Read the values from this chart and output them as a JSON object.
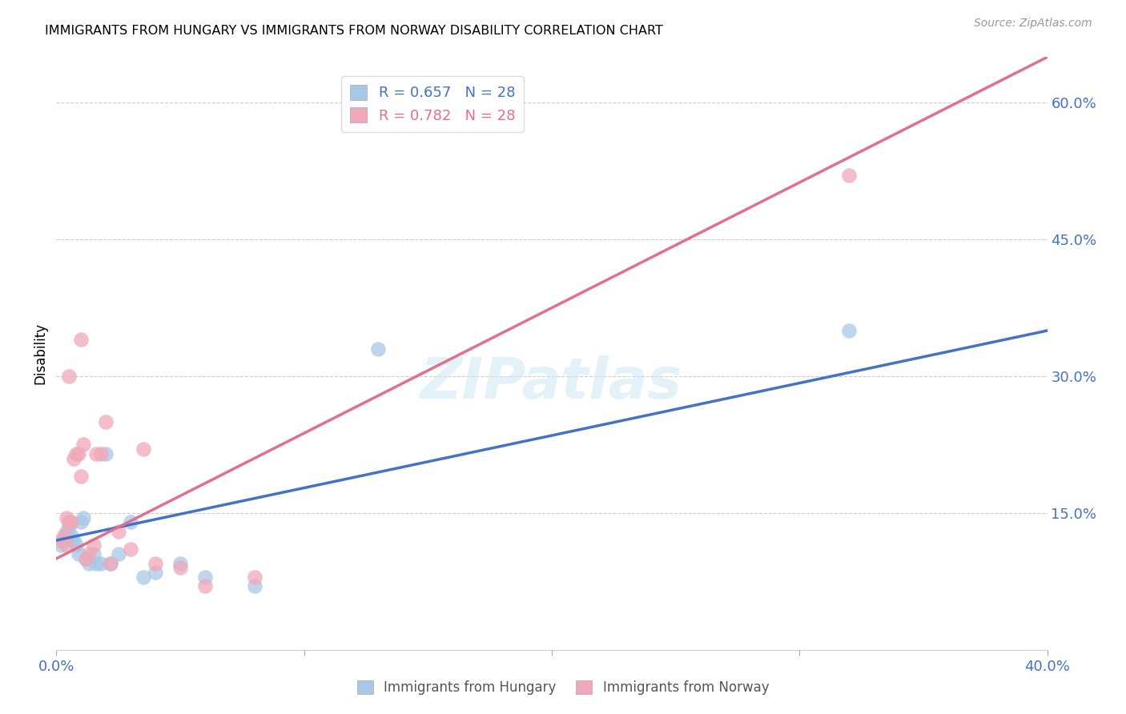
{
  "title": "IMMIGRANTS FROM HUNGARY VS IMMIGRANTS FROM NORWAY DISABILITY CORRELATION CHART",
  "source": "Source: ZipAtlas.com",
  "ylabel": "Disability",
  "xlim": [
    0.0,
    0.4
  ],
  "ylim": [
    0.0,
    0.65
  ],
  "hungary_R": 0.657,
  "norway_R": 0.782,
  "hungary_N": 28,
  "norway_N": 28,
  "hungary_color": "#a8c8e8",
  "norway_color": "#f0a8b8",
  "hungary_line_color": "#4472c4",
  "norway_line_color": "#e07090",
  "watermark_text": "ZIPatlas",
  "hungary_x": [
    0.002,
    0.003,
    0.004,
    0.004,
    0.005,
    0.005,
    0.006,
    0.007,
    0.008,
    0.009,
    0.01,
    0.011,
    0.012,
    0.013,
    0.015,
    0.016,
    0.018,
    0.02,
    0.022,
    0.025,
    0.03,
    0.035,
    0.04,
    0.05,
    0.06,
    0.08,
    0.32,
    0.13
  ],
  "hungary_y": [
    0.115,
    0.12,
    0.13,
    0.125,
    0.14,
    0.135,
    0.125,
    0.12,
    0.115,
    0.105,
    0.14,
    0.145,
    0.1,
    0.095,
    0.105,
    0.095,
    0.095,
    0.215,
    0.095,
    0.105,
    0.14,
    0.08,
    0.085,
    0.095,
    0.08,
    0.07,
    0.35,
    0.33
  ],
  "norway_x": [
    0.002,
    0.003,
    0.004,
    0.004,
    0.005,
    0.005,
    0.006,
    0.007,
    0.008,
    0.009,
    0.01,
    0.011,
    0.012,
    0.013,
    0.015,
    0.016,
    0.018,
    0.02,
    0.022,
    0.025,
    0.03,
    0.035,
    0.04,
    0.05,
    0.06,
    0.08,
    0.32,
    0.01
  ],
  "norway_y": [
    0.12,
    0.125,
    0.115,
    0.145,
    0.3,
    0.14,
    0.14,
    0.21,
    0.215,
    0.215,
    0.19,
    0.225,
    0.1,
    0.105,
    0.115,
    0.215,
    0.215,
    0.25,
    0.095,
    0.13,
    0.11,
    0.22,
    0.095,
    0.09,
    0.07,
    0.08,
    0.52,
    0.34
  ],
  "yticks_right": [
    0.15,
    0.3,
    0.45,
    0.6
  ],
  "ytick_labels_right": [
    "15.0%",
    "30.0%",
    "45.0%",
    "60.0%"
  ],
  "xticks": [
    0.0,
    0.1,
    0.2,
    0.3,
    0.4
  ],
  "xtick_labels": [
    "0.0%",
    "",
    "",
    "",
    "40.0%"
  ]
}
